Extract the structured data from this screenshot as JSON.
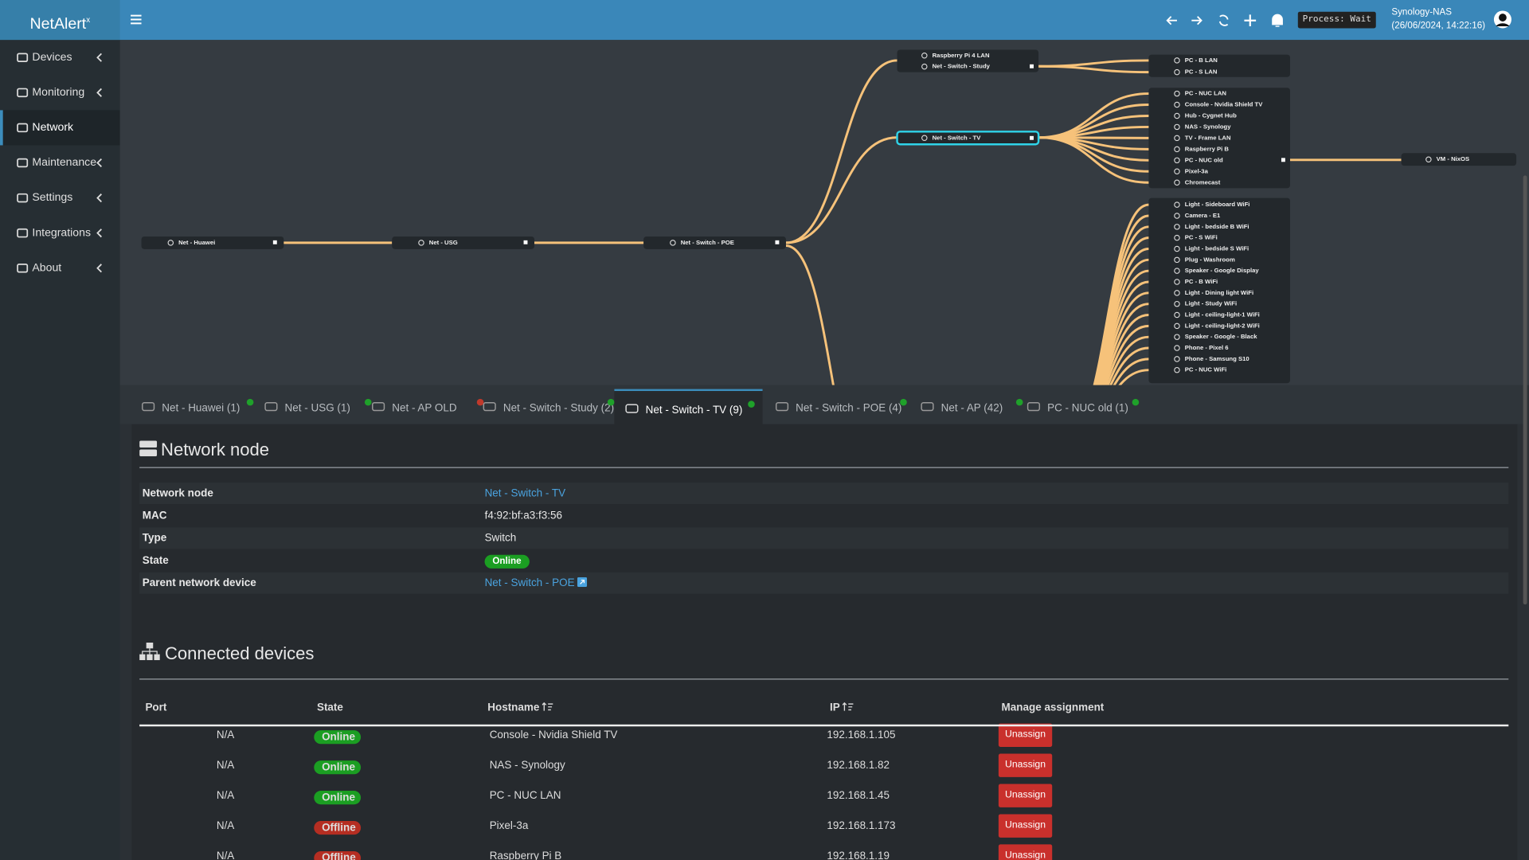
{
  "header": {
    "brand": "NetAlert",
    "brand_sup": "x",
    "process": "Process: Wait",
    "server": "Synology-NAS",
    "datetime": "(26/06/2024, 14:22:16)"
  },
  "sidebar": {
    "items": [
      "Devices",
      "Monitoring",
      "Network",
      "Maintenance",
      "Settings",
      "Integrations",
      "About"
    ],
    "active": 2
  },
  "tree": {
    "chain": [
      "Net - Huawei",
      "Net - USG",
      "Net - Switch - POE"
    ],
    "poe_children": [
      "Raspberry Pi 4 LAN",
      "Net - Switch - Study"
    ],
    "selected": "Net - Switch - TV",
    "study_children": [
      "PC - B LAN",
      "PC - S LAN"
    ],
    "tv_children": [
      "PC - NUC LAN",
      "Console - Nvidia Shield TV",
      "Hub - Cygnet Hub",
      "NAS - Synology",
      "TV - Frame LAN",
      "Raspberry Pi B",
      "PC - NUC old",
      "Pixel-3a",
      "Chromecast"
    ],
    "nuc_child": "VM - NixOS",
    "ap_children": [
      "Light - Sideboard WiFi",
      "Camera - E1",
      "Light - bedside B WiFi",
      "PC - S WiFi",
      "Light - bedside S WiFi",
      "Plug - Washroom",
      "Speaker - Google Display",
      "PC - B WiFi",
      "Light - Dining light WiFi",
      "Light - Study WiFi",
      "Light - ceiling-light-1 WiFi",
      "Light - ceiling-light-2 WiFi",
      "Speaker - Google - Black",
      "Phone - Pixel 6",
      "Phone - Samsung S10",
      "PC - NUC WiFi"
    ]
  },
  "tabs": {
    "items": [
      {
        "label": "Net - Huawei (1)",
        "dot": "#1fa12a"
      },
      {
        "label": "Net - USG (1)",
        "dot": "#1fa12a"
      },
      {
        "label": "Net - AP OLD",
        "dot": "#c0392b"
      },
      {
        "label": "Net - Switch - Study (2)",
        "dot": "#1fa12a"
      },
      {
        "label": "Net - Switch - TV (9)",
        "dot": "#1fa12a"
      },
      {
        "label": "Net - Switch - POE (4)",
        "dot": "#1fa12a"
      },
      {
        "label": "Net - AP (42)",
        "dot": "#1fa12a"
      },
      {
        "label": "PC - NUC old (1)",
        "dot": "#1fa12a"
      }
    ],
    "active": 4
  },
  "network_node": {
    "title": "Network node",
    "rows": [
      [
        "Network node",
        "Net - Switch - TV"
      ],
      [
        "MAC",
        "f4:92:bf:a3:f3:56"
      ],
      [
        "Type",
        "Switch"
      ],
      [
        "State",
        "Online"
      ],
      [
        "Parent network device",
        "Net - Switch - POE"
      ]
    ]
  },
  "connected": {
    "title": "Connected devices",
    "columns": [
      "Port",
      "State",
      "Hostname",
      "IP",
      "Manage assignment"
    ],
    "rows": [
      {
        "port": "N/A",
        "state": "Online",
        "state_color": "#1b9e22",
        "hostname": "Console - Nvidia Shield TV",
        "ip": "192.168.1.105",
        "action": "Unassign"
      },
      {
        "port": "N/A",
        "state": "Online",
        "state_color": "#1b9e22",
        "hostname": "NAS - Synology",
        "ip": "192.168.1.82",
        "action": "Unassign"
      },
      {
        "port": "N/A",
        "state": "Online",
        "state_color": "#1b9e22",
        "hostname": "PC - NUC LAN",
        "ip": "192.168.1.45",
        "action": "Unassign"
      },
      {
        "port": "N/A",
        "state": "Offline",
        "state_color": "#b52e22",
        "hostname": "Pixel-3a",
        "ip": "192.168.1.173",
        "action": "Unassign"
      },
      {
        "port": "N/A",
        "state": "Offline",
        "state_color": "#b52e22",
        "hostname": "Raspberry Pi B",
        "ip": "192.168.1.19",
        "action": "Unassign"
      }
    ]
  }
}
